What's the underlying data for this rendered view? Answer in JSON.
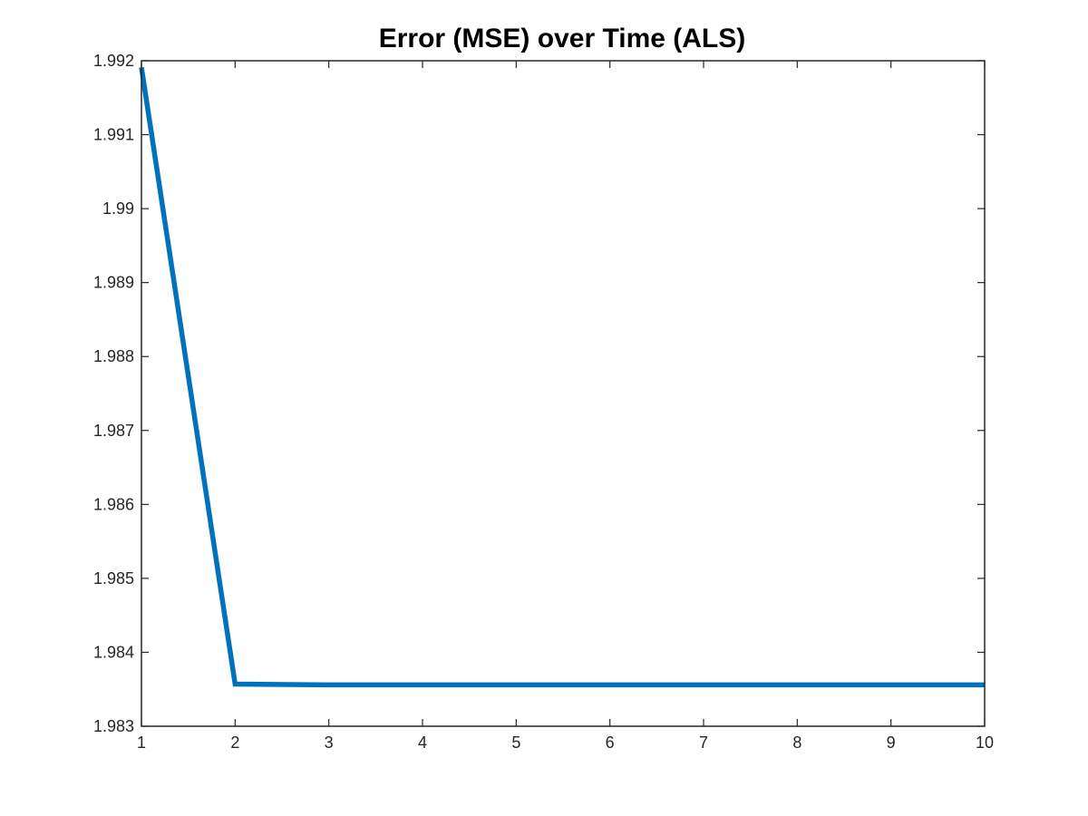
{
  "chart_data": {
    "type": "line",
    "title": "Error (MSE) over Time (ALS)",
    "xlabel": "",
    "ylabel": "",
    "xlim": [
      1,
      10
    ],
    "ylim": [
      1.983,
      1.992
    ],
    "x_ticks": [
      "1",
      "2",
      "3",
      "4",
      "5",
      "6",
      "7",
      "8",
      "9",
      "10"
    ],
    "y_ticks": [
      "1.983",
      "1.984",
      "1.985",
      "1.986",
      "1.987",
      "1.988",
      "1.989",
      "1.99",
      "1.991",
      "1.992"
    ],
    "grid": false,
    "box": true,
    "series": [
      {
        "color": "#0072BD",
        "x": [
          1,
          2,
          3,
          4,
          5,
          6,
          7,
          8,
          9,
          10
        ],
        "y": [
          1.99191,
          1.98357,
          1.98356,
          1.98356,
          1.98356,
          1.98356,
          1.98356,
          1.98356,
          1.98356,
          1.98356
        ]
      }
    ]
  }
}
